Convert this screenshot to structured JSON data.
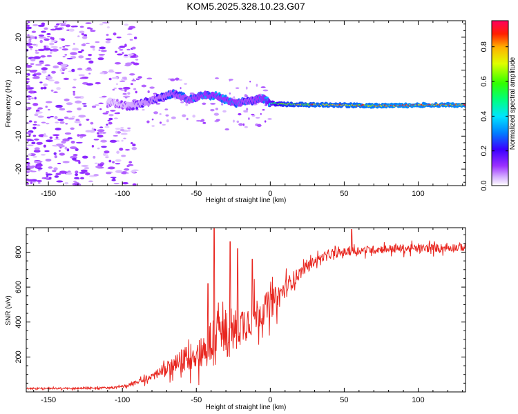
{
  "title": "KOM5.2025.328.10.23.G07",
  "chart_data": [
    {
      "type": "heatmap",
      "name": "spectrogram",
      "xlabel": "Height of straight line (km)",
      "ylabel": "Frequency (Hz)",
      "xlim": [
        -165,
        132
      ],
      "ylim": [
        -25,
        25
      ],
      "xticks": [
        -150,
        -100,
        -50,
        0,
        50,
        100
      ],
      "yticks": [
        -20,
        -10,
        0,
        10,
        20
      ],
      "colorbar": {
        "label": "Normalized spectral amplitude",
        "range": [
          0,
          0.95
        ],
        "ticks": [
          "0.0",
          "0.2",
          "0.4",
          "0.6",
          "0.8"
        ]
      },
      "ridge": {
        "description": "Dominant frequency track vs height",
        "x": [
          -105,
          -95,
          -85,
          -75,
          -65,
          -55,
          -45,
          -35,
          -25,
          -15,
          -5,
          0,
          10,
          30,
          50,
          70,
          90,
          110,
          130
        ],
        "y": [
          0,
          -1,
          0.2,
          1.5,
          3,
          1,
          2.5,
          2,
          0,
          0.5,
          1.5,
          0,
          -0.3,
          -0.5,
          -0.6,
          -0.8,
          -0.7,
          -0.5,
          -0.6
        ],
        "amplitude": [
          0.1,
          0.15,
          0.2,
          0.25,
          0.3,
          0.3,
          0.35,
          0.35,
          0.35,
          0.3,
          0.35,
          0.5,
          0.75,
          0.85,
          0.85,
          0.9,
          0.95,
          0.9,
          0.95
        ]
      }
    },
    {
      "type": "line",
      "name": "snr",
      "xlabel": "Height of straight line (km)",
      "ylabel": "SNR (v/v)",
      "xlim": [
        -165,
        132
      ],
      "ylim": [
        0,
        940
      ],
      "xticks": [
        -150,
        -100,
        -50,
        0,
        50,
        100
      ],
      "yticks": [
        200,
        400,
        600,
        800
      ],
      "series": [
        {
          "name": "SNR",
          "color": "#e8261f",
          "x": [
            -165,
            -140,
            -120,
            -105,
            -100,
            -95,
            -90,
            -85,
            -80,
            -75,
            -70,
            -65,
            -60,
            -55,
            -50,
            -45,
            -40,
            -35,
            -30,
            -25,
            -20,
            -15,
            -10,
            -5,
            0,
            5,
            10,
            15,
            20,
            25,
            30,
            35,
            40,
            50,
            60,
            70,
            80,
            90,
            100,
            110,
            120,
            132
          ],
          "y": [
            20,
            20,
            22,
            25,
            30,
            40,
            55,
            70,
            90,
            110,
            130,
            150,
            175,
            200,
            220,
            240,
            270,
            320,
            330,
            350,
            380,
            410,
            440,
            470,
            500,
            540,
            590,
            640,
            680,
            720,
            750,
            770,
            785,
            800,
            810,
            815,
            820,
            820,
            820,
            825,
            825,
            830
          ],
          "noise_amplitude": [
            8,
            8,
            8,
            10,
            12,
            15,
            20,
            30,
            40,
            55,
            70,
            90,
            110,
            130,
            140,
            160,
            280,
            300,
            260,
            220,
            200,
            180,
            170,
            150,
            140,
            120,
            100,
            80,
            60,
            50,
            45,
            40,
            40,
            40,
            40,
            40,
            40,
            40,
            40,
            40,
            40,
            40
          ],
          "spikes": [
            {
              "x": -38,
              "y": 935
            },
            {
              "x": -42,
              "y": 620
            },
            {
              "x": -27,
              "y": 860
            },
            {
              "x": -22,
              "y": 820
            },
            {
              "x": -12,
              "y": 760
            },
            {
              "x": 55,
              "y": 930
            }
          ]
        }
      ]
    }
  ]
}
